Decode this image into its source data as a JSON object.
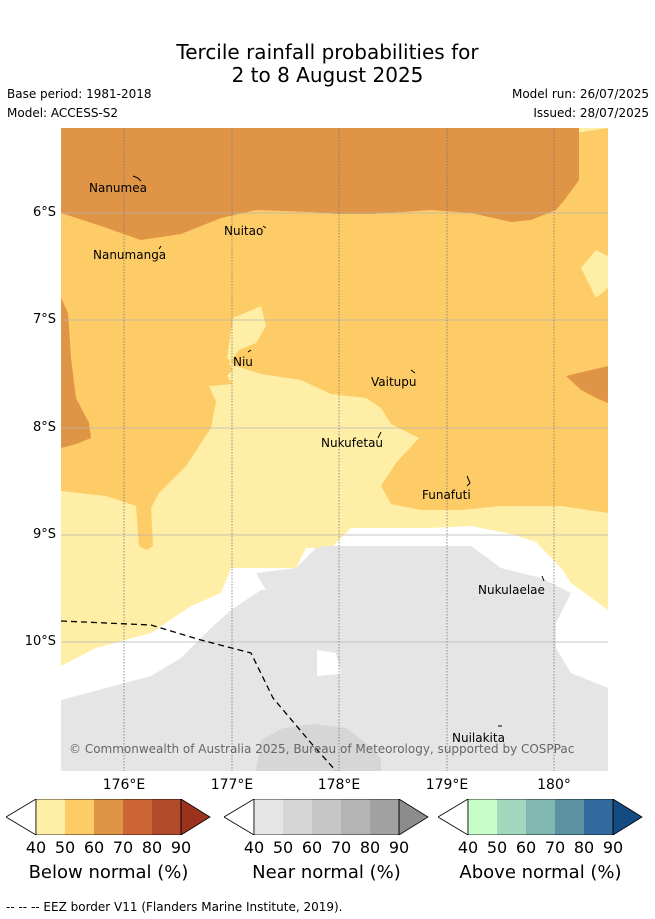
{
  "title_line1": "Tercile rainfall probabilities for",
  "title_line2": "2 to 8 August 2025",
  "base_period": "Base period: 1981-2018",
  "model": "Model: ACCESS-S2",
  "model_run": "Model run: 26/07/2025",
  "issued": "Issued: 28/07/2025",
  "lat_labels": [
    "6°S",
    "7°S",
    "8°S",
    "9°S",
    "10°S"
  ],
  "lon_labels": [
    "176°E",
    "177°E",
    "178°E",
    "179°E",
    "180°"
  ],
  "islands": [
    "Nanumea",
    "Nanumanga",
    "Nuitao",
    "Niu",
    "Vaitupu",
    "Nukufetau",
    "Funafuti",
    "Nukulaelae",
    "Nuilakita"
  ],
  "copyright": "© Commonwealth of Australia 2025, Bureau of Meteorology, supported by COSPPac",
  "colorbars": {
    "below": {
      "title": "Below normal (%)",
      "ticks": [
        "40",
        "50",
        "60",
        "70",
        "80",
        "90"
      ],
      "colors": [
        "#ffefa6",
        "#fdcc66",
        "#e09446",
        "#cd6535",
        "#b04a2b",
        "#9b321d"
      ]
    },
    "near": {
      "title": "Near normal (%)",
      "ticks": [
        "40",
        "50",
        "60",
        "70",
        "80",
        "90"
      ],
      "colors": [
        "#e5e5e5",
        "#d6d6d6",
        "#c6c6c6",
        "#b4b4b4",
        "#a1a1a1",
        "#8c8c8c"
      ]
    },
    "above": {
      "title": "Above normal (%)",
      "ticks": [
        "40",
        "50",
        "60",
        "70",
        "80",
        "90"
      ],
      "colors": [
        "#c8fcc8",
        "#a2d9be",
        "#80b7b1",
        "#5b92a0",
        "#336a9e",
        "#144b83"
      ]
    }
  },
  "footnote": "--  --  -- EEZ border V11 (Flanders Marine Institute, 2019)."
}
